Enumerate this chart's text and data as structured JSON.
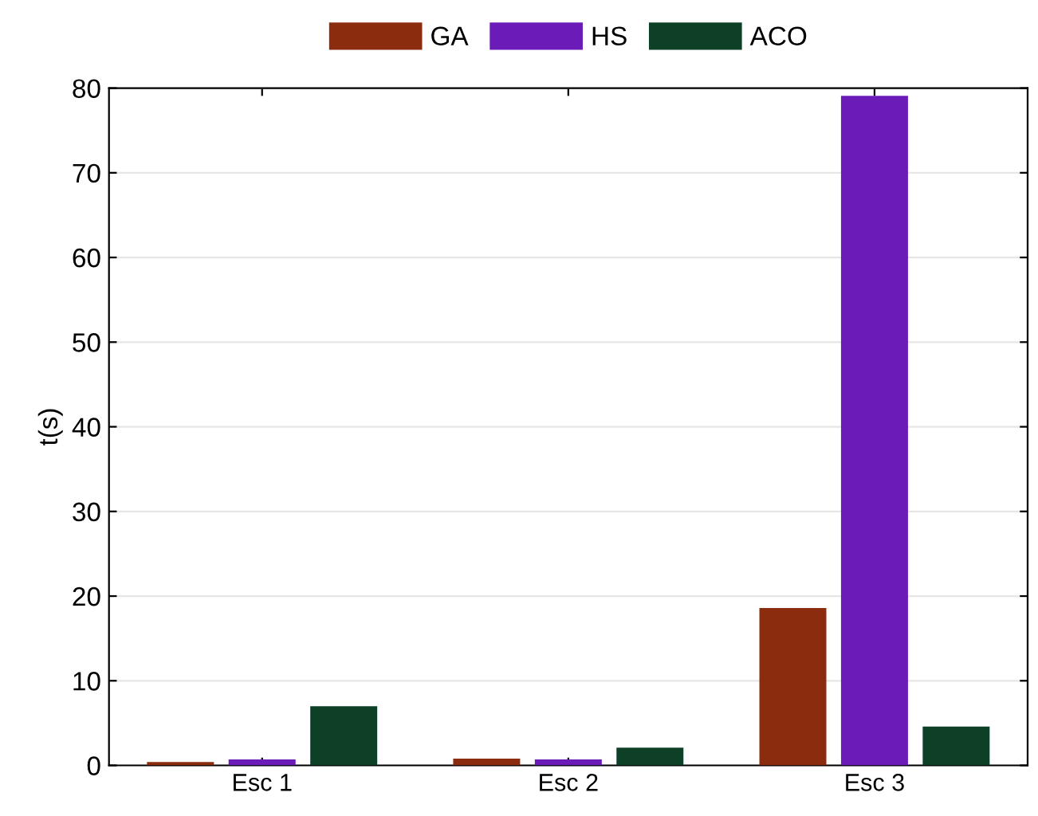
{
  "chart_data": {
    "type": "bar",
    "ylabel": "t(s)",
    "categories": [
      "Esc 1",
      "Esc 2",
      "Esc 3"
    ],
    "series": [
      {
        "name": "GA",
        "color": "#8b2c0f",
        "values": [
          0.4,
          0.8,
          18.6
        ]
      },
      {
        "name": "HS",
        "color": "#6a1bb8",
        "values": [
          0.7,
          0.7,
          79.1
        ]
      },
      {
        "name": "ACO",
        "color": "#0d4027",
        "values": [
          7.0,
          2.1,
          4.6
        ]
      }
    ],
    "ylim": [
      0,
      80
    ],
    "yticks": [
      0,
      10,
      20,
      30,
      40,
      50,
      60,
      70,
      80
    ],
    "grid": "y",
    "legend": "top"
  }
}
